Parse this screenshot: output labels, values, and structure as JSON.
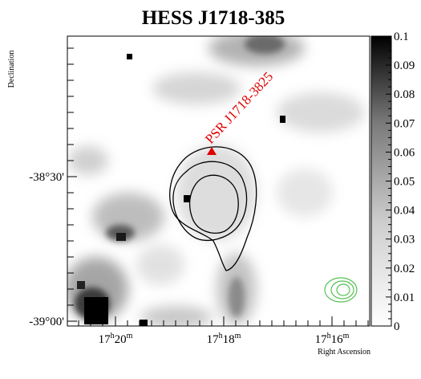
{
  "title": "HESS J1718-385",
  "y_axis_label": "Declination",
  "x_axis_label": "Right Ascension",
  "y_ticks": [
    {
      "text": "-38°30'"
    },
    {
      "text": "-39°00'"
    }
  ],
  "x_ticks": [
    {
      "hours": "17",
      "minutes": "20",
      "text": "17h20m"
    },
    {
      "hours": "17",
      "minutes": "18",
      "text": "17h18m"
    },
    {
      "hours": "17",
      "minutes": "16",
      "text": "17h16m"
    }
  ],
  "colorbar": {
    "range": [
      0,
      0.1
    ],
    "ticks": [
      "0.1",
      "0.09",
      "0.08",
      "0.07",
      "0.06",
      "0.05",
      "0.04",
      "0.03",
      "0.02",
      "0.01",
      "0"
    ]
  },
  "annotation": {
    "text": "PSR J1718-3825",
    "color": "#e00000",
    "marker": "triangle"
  },
  "contours": {
    "black": "black-contour-lines",
    "green": "green-contour-lines"
  },
  "colors": {
    "psr": "#e00000",
    "green_contour": "#55c155",
    "black_contour": "#000000"
  }
}
